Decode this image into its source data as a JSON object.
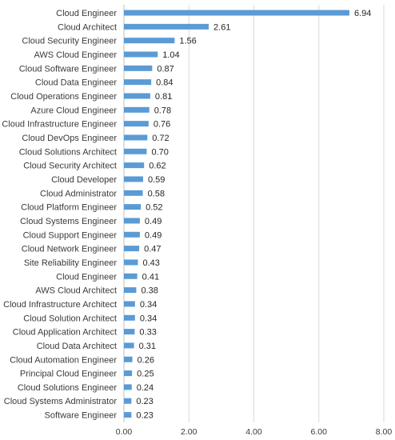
{
  "chart_data": {
    "type": "bar",
    "orientation": "horizontal",
    "categories": [
      "Cloud Engineer",
      "Cloud Architect",
      "Cloud Security Engineer",
      "AWS Cloud Engineer",
      "Cloud Software Engineer",
      "Cloud Data Engineer",
      "Cloud Operations Engineer",
      "Azure Cloud Engineer",
      "Cloud Infrastructure Engineer",
      "Cloud DevOps Engineer",
      "Cloud Solutions Architect",
      "Cloud Security Architect",
      "Cloud Developer",
      "Cloud Administrator",
      "Cloud Platform Engineer",
      "Cloud Systems Engineer",
      "Cloud Support Engineer",
      "Cloud Network Engineer",
      "Site Reliability Engineer",
      "Cloud Engineer",
      "AWS Cloud Architect",
      "Cloud Infrastructure Architect",
      "Cloud Solution Architect",
      "Cloud Application Architect",
      "Cloud Data Architect",
      "Cloud Automation Engineer",
      "Principal Cloud Engineer",
      "Cloud Solutions Engineer",
      "Cloud Systems Administrator",
      "Software Engineer"
    ],
    "values": [
      6.94,
      2.61,
      1.56,
      1.04,
      0.87,
      0.84,
      0.81,
      0.78,
      0.76,
      0.72,
      0.7,
      0.62,
      0.59,
      0.58,
      0.52,
      0.49,
      0.49,
      0.47,
      0.43,
      0.41,
      0.38,
      0.34,
      0.34,
      0.33,
      0.31,
      0.26,
      0.25,
      0.24,
      0.23,
      0.23
    ],
    "value_labels": [
      "6.94",
      "2.61",
      "1.56",
      "1.04",
      "0.87",
      "0.84",
      "0.81",
      "0.78",
      "0.76",
      "0.72",
      "0.70",
      "0.62",
      "0.59",
      "0.58",
      "0.52",
      "0.49",
      "0.49",
      "0.47",
      "0.43",
      "0.41",
      "0.38",
      "0.34",
      "0.34",
      "0.33",
      "0.31",
      "0.26",
      "0.25",
      "0.24",
      "0.23",
      "0.23"
    ],
    "x_ticks": [
      0,
      2,
      4,
      6,
      8
    ],
    "x_tick_labels": [
      "0.00",
      "2.00",
      "4.00",
      "6.00",
      "8.00"
    ],
    "xlim": [
      0,
      8
    ],
    "title": "",
    "xlabel": "",
    "ylabel": "",
    "grid": "vertical",
    "legend": "none",
    "bar_color": "#5b9bd5"
  }
}
